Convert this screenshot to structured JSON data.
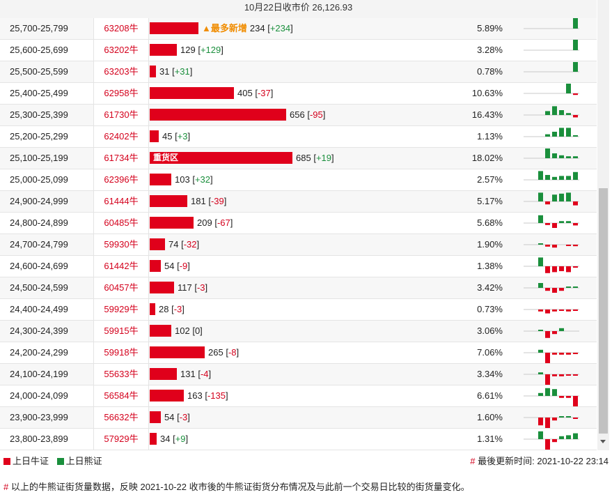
{
  "header": {
    "title": "10月22日收市价 26,126.93"
  },
  "rows": [
    {
      "range": "25,700-25,799",
      "code": "63208牛",
      "count": 234,
      "change": "+234",
      "pct": "5.89%",
      "tag": "▲最多新增",
      "tag_style": "new",
      "spark": [
        0,
        0,
        0,
        0,
        0,
        0,
        0,
        0.55
      ],
      "alt": true
    },
    {
      "range": "25,600-25,699",
      "code": "63202牛",
      "count": 129,
      "change": "+129",
      "pct": "3.28%",
      "tag": "",
      "tag_style": "",
      "spark": [
        0,
        0,
        0,
        0,
        0,
        0,
        0,
        0.55
      ],
      "alt": false
    },
    {
      "range": "25,500-25,599",
      "code": "63203牛",
      "count": 31,
      "change": "+31",
      "pct": "0.78%",
      "tag": "",
      "tag_style": "",
      "spark": [
        0,
        0,
        0,
        0,
        0,
        0,
        0,
        0.5
      ],
      "alt": true
    },
    {
      "range": "25,400-25,499",
      "code": "62958牛",
      "count": 405,
      "change": "-37",
      "pct": "10.63%",
      "tag": "",
      "tag_style": "",
      "spark": [
        0,
        0,
        0,
        0,
        0,
        0,
        0.5,
        -0.08
      ],
      "alt": false
    },
    {
      "range": "25,300-25,399",
      "code": "61730牛",
      "count": 656,
      "change": "-95",
      "pct": "16.43%",
      "tag": "",
      "tag_style": "",
      "spark": [
        0,
        0,
        0,
        0.2,
        0.45,
        0.25,
        0.1,
        -0.12
      ],
      "alt": true
    },
    {
      "range": "25,200-25,299",
      "code": "62402牛",
      "count": 45,
      "change": "+3",
      "pct": "1.13%",
      "tag": "",
      "tag_style": "",
      "spark": [
        0,
        0,
        0,
        0.12,
        0.25,
        0.45,
        0.45,
        0.05
      ],
      "alt": false
    },
    {
      "range": "25,100-25,199",
      "code": "61734牛",
      "count": 685,
      "change": "+19",
      "pct": "18.02%",
      "tag": "重货区",
      "tag_style": "heavy",
      "spark": [
        0,
        0,
        0,
        0.5,
        0.25,
        0.15,
        0.1,
        0.1
      ],
      "alt": true
    },
    {
      "range": "25,000-25,099",
      "code": "62396牛",
      "count": 103,
      "change": "+32",
      "pct": "2.57%",
      "tag": "",
      "tag_style": "",
      "spark": [
        0,
        0,
        0.45,
        0.25,
        0.15,
        0.2,
        0.2,
        0.4
      ],
      "alt": false
    },
    {
      "range": "24,900-24,999",
      "code": "61444牛",
      "count": 181,
      "change": "-39",
      "pct": "5.17%",
      "tag": "",
      "tag_style": "",
      "spark": [
        0,
        0,
        0.45,
        -0.15,
        0.35,
        0.4,
        0.45,
        -0.2
      ],
      "alt": true
    },
    {
      "range": "24,800-24,899",
      "code": "60485牛",
      "count": 209,
      "change": "-67",
      "pct": "5.68%",
      "tag": "",
      "tag_style": "",
      "spark": [
        0,
        0,
        0.4,
        -0.1,
        -0.25,
        0.1,
        0.1,
        -0.12
      ],
      "alt": false
    },
    {
      "range": "24,700-24,799",
      "code": "59930牛",
      "count": 74,
      "change": "-32",
      "pct": "1.90%",
      "tag": "",
      "tag_style": "",
      "spark": [
        0,
        0,
        0.05,
        -0.1,
        -0.15,
        0,
        -0.05,
        -0.08
      ],
      "alt": true
    },
    {
      "range": "24,600-24,699",
      "code": "61442牛",
      "count": 54,
      "change": "-9",
      "pct": "1.38%",
      "tag": "",
      "tag_style": "",
      "spark": [
        0,
        0,
        0.45,
        -0.35,
        -0.3,
        -0.25,
        -0.3,
        -0.05
      ],
      "alt": false
    },
    {
      "range": "24,500-24,599",
      "code": "60457牛",
      "count": 117,
      "change": "-3",
      "pct": "3.42%",
      "tag": "",
      "tag_style": "",
      "spark": [
        0,
        0,
        0.25,
        -0.15,
        -0.25,
        -0.15,
        0.05,
        0.05
      ],
      "alt": true
    },
    {
      "range": "24,400-24,499",
      "code": "59929牛",
      "count": 28,
      "change": "-3",
      "pct": "0.73%",
      "tag": "",
      "tag_style": "",
      "spark": [
        0,
        0,
        -0.1,
        -0.2,
        -0.1,
        -0.05,
        -0.1,
        -0.05
      ],
      "alt": false
    },
    {
      "range": "24,300-24,399",
      "code": "59915牛",
      "count": 102,
      "change": "0",
      "pct": "3.06%",
      "tag": "",
      "tag_style": "",
      "spark": [
        0,
        0,
        0.05,
        -0.35,
        -0.15,
        0.15,
        0,
        0
      ],
      "alt": true
    },
    {
      "range": "24,200-24,299",
      "code": "59918牛",
      "count": 265,
      "change": "-8",
      "pct": "7.06%",
      "tag": "",
      "tag_style": "",
      "spark": [
        0,
        0,
        0.15,
        -0.55,
        -0.1,
        -0.1,
        -0.1,
        -0.05
      ],
      "alt": false
    },
    {
      "range": "24,100-24,199",
      "code": "55633牛",
      "count": 131,
      "change": "-4",
      "pct": "3.34%",
      "tag": "",
      "tag_style": "",
      "spark": [
        0,
        0,
        0.1,
        -0.55,
        -0.1,
        -0.1,
        -0.05,
        -0.05
      ],
      "alt": true
    },
    {
      "range": "24,000-24,099",
      "code": "56584牛",
      "count": 163,
      "change": "-135",
      "pct": "6.61%",
      "tag": "",
      "tag_style": "",
      "spark": [
        0,
        0,
        0.15,
        0.4,
        0.35,
        -0.1,
        -0.1,
        -0.6
      ],
      "alt": false
    },
    {
      "range": "23,900-23,999",
      "code": "56632牛",
      "count": 54,
      "change": "-3",
      "pct": "1.60%",
      "tag": "",
      "tag_style": "",
      "spark": [
        0,
        0,
        -0.4,
        -0.55,
        -0.15,
        0.05,
        0.05,
        -0.05
      ],
      "alt": true
    },
    {
      "range": "23,800-23,899",
      "code": "57929牛",
      "count": 34,
      "change": "+9",
      "pct": "1.31%",
      "tag": "",
      "tag_style": "",
      "spark": [
        0,
        0,
        0.4,
        -0.6,
        -0.15,
        0.15,
        0.2,
        0.3
      ],
      "alt": false
    }
  ],
  "legend": {
    "bull": "上日牛证",
    "bear": "上日熊证"
  },
  "updated": {
    "hash": "#",
    "text": "最後更新时间: 2021-10-22 23:14"
  },
  "note": {
    "hash": "#",
    "text": "以上的牛熊证街货量数据，反映 2021-10-22 收市後的牛熊证街货分布情况及与此前一个交易日比较的街货量变化。"
  },
  "colors": {
    "bull": "#e0001b",
    "bear": "#1a8f3c",
    "tag_new": "#f08c00"
  },
  "scale": {
    "max_count": 685
  }
}
